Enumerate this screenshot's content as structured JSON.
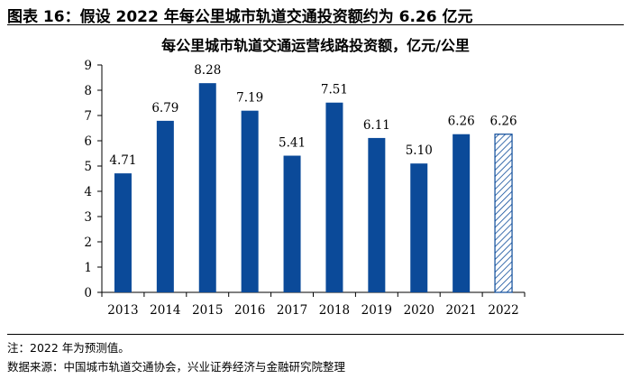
{
  "figure_title": "图表 16：假设 2022 年每公里城市轨道交通投资额约为 6.26 亿元",
  "notes": {
    "note": "注：2022 年为预测值。",
    "source": "数据来源：中国城市轨道交通协会，兴业证券经济与金融研究院整理"
  },
  "colors": {
    "bar": "#0B4A99",
    "forecast_hatch": "#0B4A99",
    "axis": "#000000"
  },
  "chart_data": {
    "type": "bar",
    "title": "每公里城市轨道交通运营线路投资额，亿元/公里",
    "categories": [
      "2013",
      "2014",
      "2015",
      "2016",
      "2017",
      "2018",
      "2019",
      "2020",
      "2021",
      "2022"
    ],
    "values": [
      4.71,
      6.79,
      8.28,
      7.19,
      5.41,
      7.51,
      6.11,
      5.1,
      6.26,
      6.26
    ],
    "value_labels": [
      "4.71",
      "6.79",
      "8.28",
      "7.19",
      "5.41",
      "7.51",
      "6.11",
      "5.10",
      "6.26",
      "6.26"
    ],
    "forecast": [
      false,
      false,
      false,
      false,
      false,
      false,
      false,
      false,
      false,
      true
    ],
    "ylim": [
      0,
      9
    ],
    "yticks": [
      0,
      1,
      2,
      3,
      4,
      5,
      6,
      7,
      8,
      9
    ],
    "grid": false,
    "legend": "none"
  }
}
